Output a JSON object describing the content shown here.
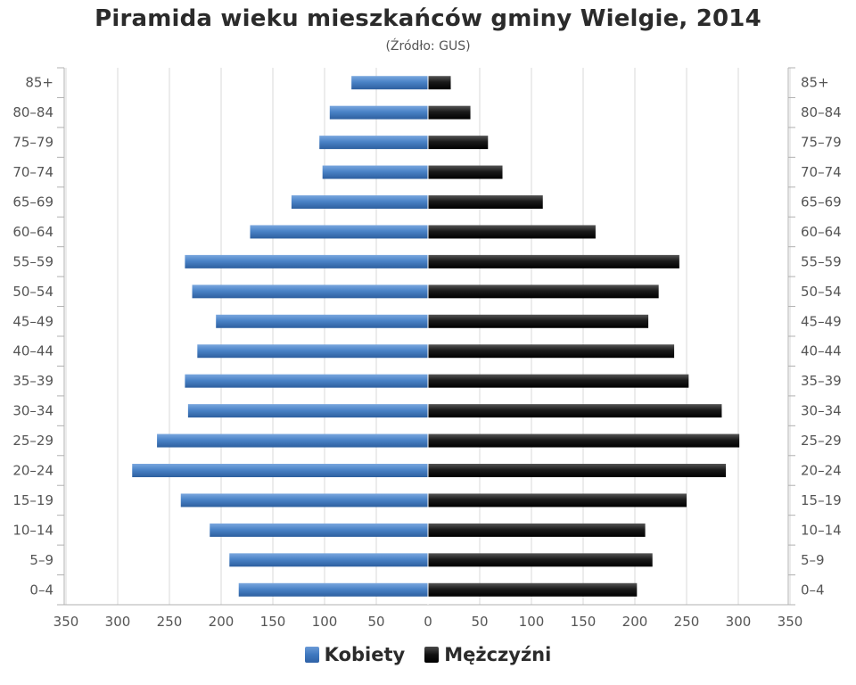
{
  "colors": {
    "female": "#3f78bf",
    "male": "#111111",
    "grid": "#d9d9d9",
    "axis": "#b0b0b0"
  },
  "chart_data": {
    "type": "bar",
    "orientation": "horizontal-population-pyramid",
    "title": "Piramida wieku mieszkańców gminy Wielgie, 2014",
    "subtitle": "(Źródło: GUS)",
    "categories": [
      "0–4",
      "5–9",
      "10–14",
      "15–19",
      "20–24",
      "25–29",
      "30–34",
      "35–39",
      "40–44",
      "45–49",
      "50–54",
      "55–59",
      "60–64",
      "65–69",
      "70–74",
      "75–79",
      "80–84",
      "85+"
    ],
    "series": [
      {
        "name": "Kobiety",
        "side": "left",
        "values": [
          183,
          192,
          211,
          239,
          286,
          262,
          232,
          235,
          223,
          205,
          228,
          235,
          172,
          132,
          102,
          105,
          95,
          74
        ]
      },
      {
        "name": "Mężczyźni",
        "side": "right",
        "values": [
          202,
          217,
          210,
          250,
          288,
          301,
          284,
          252,
          238,
          213,
          223,
          243,
          162,
          111,
          72,
          58,
          41,
          22
        ]
      }
    ],
    "xlim": [
      -350,
      350
    ],
    "x_ticks": [
      350,
      300,
      250,
      200,
      150,
      100,
      50,
      0,
      50,
      100,
      150,
      200,
      250,
      300,
      350
    ],
    "grid": true,
    "legend_position": "bottom-center",
    "category_labels_on_both_sides": true
  }
}
